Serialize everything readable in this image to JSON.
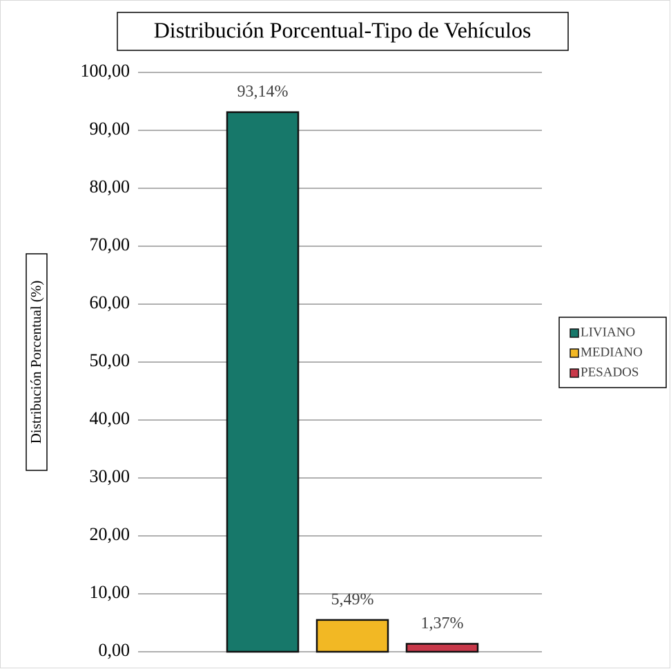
{
  "chart_data": {
    "type": "bar",
    "title": "Distribución Porcentual-Tipo de Vehículos",
    "y_label": "Distribución Porcentual (%)",
    "categories": [
      null
    ],
    "series": [
      {
        "name": "LIVIANO",
        "color": "#17786a",
        "values": [
          93.14
        ],
        "value_labels": [
          "93,14%"
        ]
      },
      {
        "name": "MEDIANO",
        "color": "#f2b824",
        "values": [
          5.49
        ],
        "value_labels": [
          "5,49%"
        ]
      },
      {
        "name": "PESADOS",
        "color": "#c8394a",
        "values": [
          1.37
        ],
        "value_labels": [
          "1,37%"
        ]
      }
    ],
    "ylim": [
      0,
      100
    ],
    "yticks": [
      {
        "value": 0,
        "label": "0,00"
      },
      {
        "value": 10,
        "label": "10,00"
      },
      {
        "value": 20,
        "label": "20,00"
      },
      {
        "value": 30,
        "label": "30,00"
      },
      {
        "value": 40,
        "label": "40,00"
      },
      {
        "value": 50,
        "label": "50,00"
      },
      {
        "value": 60,
        "label": "60,00"
      },
      {
        "value": 70,
        "label": "70,00"
      },
      {
        "value": 80,
        "label": "80,00"
      },
      {
        "value": 90,
        "label": "90,00"
      },
      {
        "value": 100,
        "label": "100,00"
      }
    ],
    "grid": true,
    "legend": "right"
  }
}
